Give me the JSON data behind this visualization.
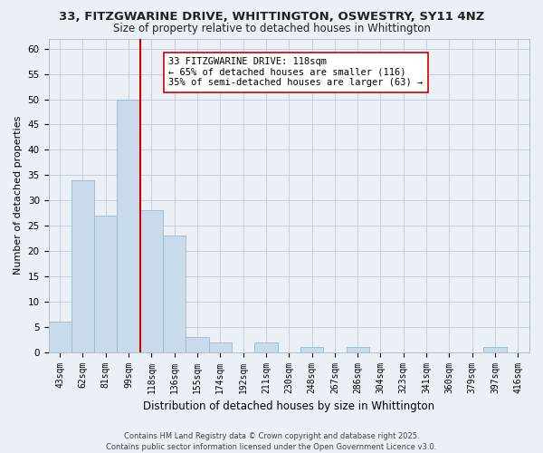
{
  "title_line1": "33, FITZGWARINE DRIVE, WHITTINGTON, OSWESTRY, SY11 4NZ",
  "title_line2": "Size of property relative to detached houses in Whittington",
  "xlabel": "Distribution of detached houses by size in Whittington",
  "ylabel": "Number of detached properties",
  "bin_labels": [
    "43sqm",
    "62sqm",
    "81sqm",
    "99sqm",
    "118sqm",
    "136sqm",
    "155sqm",
    "174sqm",
    "192sqm",
    "211sqm",
    "230sqm",
    "248sqm",
    "267sqm",
    "286sqm",
    "304sqm",
    "323sqm",
    "341sqm",
    "360sqm",
    "379sqm",
    "397sqm",
    "416sqm"
  ],
  "bar_values": [
    6,
    34,
    27,
    50,
    28,
    23,
    3,
    2,
    0,
    2,
    0,
    1,
    0,
    1,
    0,
    0,
    0,
    0,
    0,
    1,
    0
  ],
  "bar_color": "#c9daea",
  "bar_edge_color": "#9ab8cc",
  "highlight_line_color": "#cc0000",
  "annotation_text": "33 FITZGWARINE DRIVE: 118sqm\n← 65% of detached houses are smaller (116)\n35% of semi-detached houses are larger (63) →",
  "annotation_box_facecolor": "#ffffff",
  "annotation_box_edgecolor": "#cc0000",
  "ylim": [
    0,
    62
  ],
  "yticks": [
    0,
    5,
    10,
    15,
    20,
    25,
    30,
    35,
    40,
    45,
    50,
    55,
    60
  ],
  "footer_line1": "Contains HM Land Registry data © Crown copyright and database right 2025.",
  "footer_line2": "Contains public sector information licensed under the Open Government Licence v3.0.",
  "bg_color": "#eaf0f6",
  "plot_bg_color": "#eaf0f6",
  "title_fontsize": 9.5,
  "subtitle_fontsize": 8.5,
  "ylabel_fontsize": 8,
  "xlabel_fontsize": 8.5,
  "tick_fontsize": 7,
  "annot_fontsize": 7.5,
  "footer_fontsize": 6
}
